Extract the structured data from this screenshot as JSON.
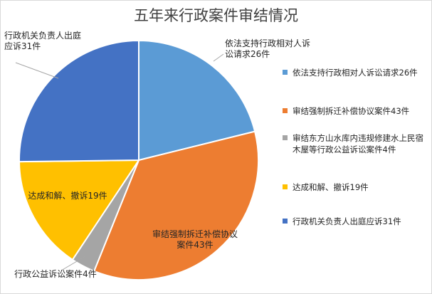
{
  "chart_data": {
    "type": "pie",
    "title": "五年来行政案件审结情况",
    "slices": [
      {
        "name": "依法支持行政相对人诉讼请求26件",
        "value": 26,
        "color": "#5b9bd5",
        "data_label": "依法支持行政相对人诉讼请求26件"
      },
      {
        "name": "审结强制拆迁补偿协议案件43件",
        "value": 43,
        "color": "#ed7d31",
        "data_label": "审结强制拆迁补偿协议案件43件"
      },
      {
        "name": "审结东方山水库内违规修建水上民宿木屋等行政公益诉讼案件4件",
        "value": 4,
        "color": "#a5a5a5",
        "data_label": "行政公益诉讼案件4件"
      },
      {
        "name": "达成和解、撤诉19件",
        "value": 19,
        "color": "#ffc000",
        "data_label": "达成和解、撤诉19件"
      },
      {
        "name": "行政机关负责人出庭应诉31件",
        "value": 31,
        "color": "#4472c4",
        "data_label": "行政机关负责人出庭应诉31件"
      }
    ],
    "start_angle": "12 o'clock",
    "direction": "clockwise",
    "legend_position": "right"
  }
}
